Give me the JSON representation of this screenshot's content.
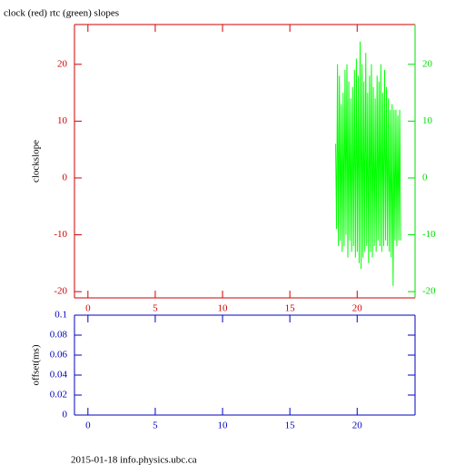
{
  "chart_data": [
    {
      "type": "line",
      "title": "clock (red) rtc (green) slopes",
      "ylabel": "clockslope",
      "xlim": [
        -1,
        24.3
      ],
      "xticks": [
        0,
        5,
        10,
        15,
        20
      ],
      "ylim": [
        -21.1,
        27
      ],
      "yticks": [
        -20,
        -10,
        0,
        10,
        20
      ],
      "y2lim": [
        -21.1,
        27
      ],
      "y2ticks": [
        -20,
        -10,
        0,
        10,
        20
      ],
      "axis_color": "#d00000",
      "y2_color": "#00dd00",
      "series": [
        {
          "color": "#00ff00",
          "axis": "y2",
          "x": [
            18.4,
            18.47,
            18.54,
            18.61,
            18.68,
            18.75,
            18.82,
            18.89,
            18.96,
            19.03,
            19.1,
            19.17,
            19.24,
            19.31,
            19.38,
            19.45,
            19.52,
            19.59,
            19.66,
            19.73,
            19.8,
            19.87,
            19.94,
            20.01,
            20.08,
            20.15,
            20.22,
            20.29,
            20.36,
            20.43,
            20.5,
            20.57,
            20.64,
            20.71,
            20.78,
            20.85,
            20.92,
            20.99,
            21.06,
            21.13,
            21.2,
            21.27,
            21.34,
            21.41,
            21.48,
            21.55,
            21.62,
            21.69,
            21.76,
            21.83,
            21.9,
            21.97,
            22.04,
            22.11,
            22.18,
            22.25,
            22.32,
            22.39,
            22.46,
            22.53,
            22.6,
            22.67,
            22.74,
            22.81,
            22.88,
            22.95,
            23.02,
            23.09,
            23.16,
            23.23
          ],
          "values": [
            6,
            -9,
            20,
            -12,
            18,
            -11,
            13,
            -13,
            15,
            -12,
            19,
            -10,
            20,
            -14,
            17,
            -11,
            14,
            -13,
            16,
            -12,
            19,
            -14,
            21,
            -13,
            18,
            -15,
            24,
            -16,
            20,
            -14,
            17,
            -13,
            22,
            -12,
            15,
            -15,
            18,
            -13,
            20,
            -14,
            16,
            -12,
            14,
            -13,
            18,
            -11,
            17,
            -12,
            20,
            -13,
            15,
            -12,
            19,
            -11,
            16,
            -12,
            14,
            -13,
            12,
            -14,
            13,
            -19,
            12,
            -11,
            12,
            -12,
            11,
            -11,
            12,
            -11
          ]
        }
      ]
    },
    {
      "type": "line",
      "ylabel": "offset(ms)",
      "xlim": [
        -1,
        24.3
      ],
      "xticks": [
        0,
        5,
        10,
        15,
        20
      ],
      "ylim": [
        0,
        0.1
      ],
      "yticks": [
        0,
        0.02,
        0.04,
        0.06,
        0.08,
        0.1
      ],
      "axis_color": "#0000c0",
      "series": []
    }
  ],
  "footer": "2015-01-18 info.physics.ubc.ca"
}
